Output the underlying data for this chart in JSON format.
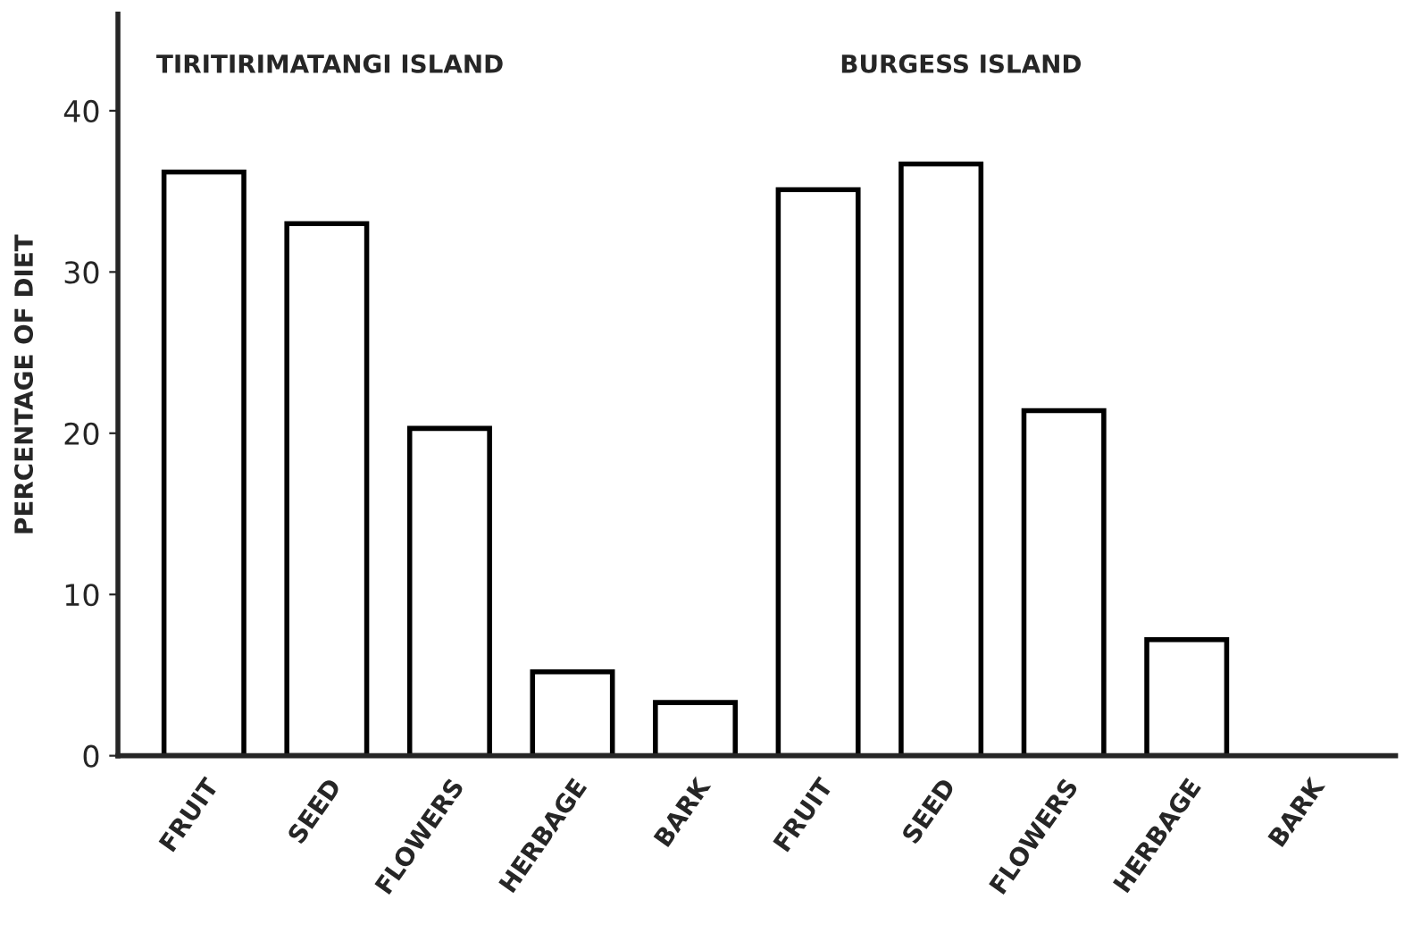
{
  "chart_data": {
    "type": "bar",
    "ylabel": "PERCENTAGE OF DIET",
    "categories": [
      "FRUIT",
      "SEED",
      "FLOWERS",
      "HERBAGE",
      "BARK",
      "FRUIT",
      "SEED",
      "FLOWERS",
      "HERBAGE",
      "BARK"
    ],
    "values": [
      36.2,
      33.0,
      20.3,
      5.2,
      3.3,
      35.1,
      36.7,
      21.4,
      7.2,
      null
    ],
    "color": "#ffffff",
    "annotations": [
      "TIRITIRIMATANGI ISLAND",
      "BURGESS ISLAND"
    ],
    "ylim": [
      0,
      46
    ],
    "yticks": [
      0,
      10,
      20,
      30,
      40
    ],
    "grid": false,
    "legend": false
  }
}
